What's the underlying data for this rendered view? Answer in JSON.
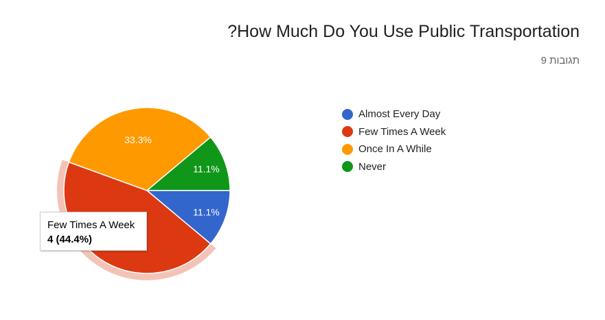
{
  "header": {
    "title": "?How Much Do You Use Public Transportation",
    "responses_count": "9",
    "responses_label": "תגובות"
  },
  "chart_data": {
    "type": "pie",
    "title": "?How Much Do You Use Public Transportation",
    "categories": [
      "Almost Every Day",
      "Few Times A Week",
      "Once In A While",
      "Never"
    ],
    "values": [
      1,
      4,
      3,
      1
    ],
    "labels": [
      "11.1%",
      "",
      "33.3%",
      "11.1%"
    ],
    "colors": [
      "#3366cc",
      "#dc3912",
      "#ff9900",
      "#109618"
    ],
    "highlighted_slice": "Few Times A Week",
    "legend_position": "right"
  },
  "tooltip": {
    "category": "Few Times A Week",
    "value_text": "4 (44.4%)"
  }
}
